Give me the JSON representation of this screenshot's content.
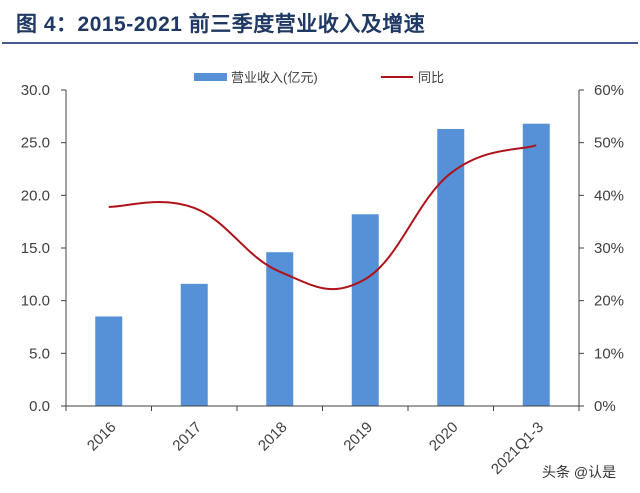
{
  "header": {
    "title": "图 4：2015-2021 前三季度营业收入及增速"
  },
  "watermark": "头条 @认是",
  "colors": {
    "bar": "#5690d6",
    "line": "#b0121b",
    "title": "#1f3864",
    "rule": "#4a5a94",
    "axis": "#404040"
  },
  "chart_data": {
    "type": "bar+line",
    "title": "2015-2021 前三季度营业收入及增速",
    "categories": [
      "2016",
      "2017",
      "2018",
      "2019",
      "2020",
      "2021Q1-3"
    ],
    "series": [
      {
        "name": "营业收入(亿元)",
        "type": "bar",
        "axis": "left",
        "values": [
          8.5,
          11.6,
          14.6,
          18.2,
          26.3,
          26.8
        ]
      },
      {
        "name": "同比",
        "type": "line",
        "axis": "right",
        "smooth": true,
        "values": [
          0.378,
          0.376,
          0.255,
          0.241,
          0.442,
          0.495
        ]
      }
    ],
    "left_axis": {
      "ylim": [
        0,
        30
      ],
      "ticks": [
        "0.0",
        "5.0",
        "10.0",
        "15.0",
        "20.0",
        "25.0",
        "30.0"
      ]
    },
    "right_axis": {
      "ylim": [
        0,
        0.6
      ],
      "ticks": [
        "0%",
        "10%",
        "20%",
        "30%",
        "40%",
        "50%",
        "60%"
      ]
    },
    "xlabel": "",
    "ylabel": "",
    "grid": false,
    "legend_position": "top"
  }
}
